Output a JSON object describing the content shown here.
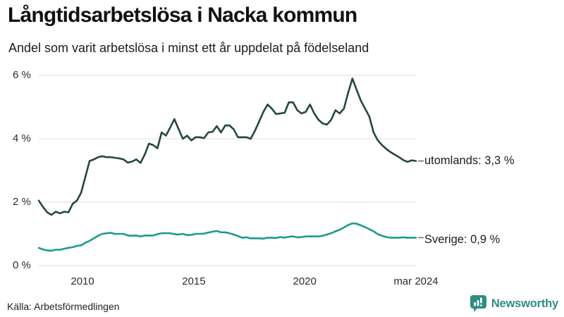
{
  "header": {
    "title": "Långtidsarbetslösa i Nacka kommun",
    "subtitle": "Andel som varit arbetslösa i minst ett år uppdelat på födelseland"
  },
  "source": "Källa: Arbetsförmedlingen",
  "branding": {
    "name": "Newsworthy",
    "logo_icon": "bar-chart-speech-bubble-icon",
    "color": "#2e8c82"
  },
  "colors": {
    "background": "#ffffff",
    "grid": "#e3e3e6",
    "axis_text": "#2b2b2b",
    "connector": "#6b6b6b",
    "utomlands_line": "#24473f",
    "sverige_line": "#1a9c8c"
  },
  "chart_data": {
    "type": "line",
    "title": "Långtidsarbetslösa i Nacka kommun",
    "subtitle": "Andel som varit arbetslösa i minst ett år uppdelat på födelseland",
    "unit": "%",
    "ylim": [
      0,
      6
    ],
    "grid": true,
    "legend_position": "end-of-line-labels",
    "x_range": [
      "2008",
      "mar 2024"
    ],
    "y_ticks": [
      {
        "label": "0 %",
        "value": 0
      },
      {
        "label": "2 %",
        "value": 2
      },
      {
        "label": "4 %",
        "value": 4
      },
      {
        "label": "6 %",
        "value": 6
      }
    ],
    "x_ticks": [
      {
        "label": "2010",
        "pos": 0.116
      },
      {
        "label": "2015",
        "pos": 0.411
      },
      {
        "label": "2020",
        "pos": 0.705
      },
      {
        "label": "mar 2024",
        "pos": 1.0
      }
    ],
    "series": [
      {
        "name": "utomlands",
        "label": "utomlands: 3,3 %",
        "last_value": 3.3,
        "color": "#24473f",
        "values": [
          2.05,
          1.85,
          1.68,
          1.6,
          1.7,
          1.65,
          1.7,
          1.68,
          1.95,
          2.05,
          2.3,
          2.8,
          3.3,
          3.35,
          3.42,
          3.45,
          3.42,
          3.42,
          3.4,
          3.38,
          3.35,
          3.25,
          3.28,
          3.35,
          3.24,
          3.5,
          3.85,
          3.8,
          3.7,
          4.2,
          4.1,
          4.35,
          4.62,
          4.3,
          4.0,
          4.1,
          3.95,
          4.05,
          4.05,
          4.02,
          4.2,
          4.22,
          4.4,
          4.2,
          4.42,
          4.42,
          4.3,
          4.05,
          4.05,
          4.05,
          4.0,
          4.25,
          4.55,
          4.85,
          5.08,
          4.95,
          4.78,
          4.8,
          4.82,
          5.15,
          5.15,
          4.9,
          4.8,
          4.85,
          5.08,
          4.8,
          4.6,
          4.48,
          4.45,
          4.6,
          4.9,
          4.8,
          4.95,
          5.45,
          5.9,
          5.55,
          5.2,
          4.95,
          4.7,
          4.2,
          3.95,
          3.8,
          3.68,
          3.58,
          3.5,
          3.42,
          3.33,
          3.27,
          3.32,
          3.3
        ]
      },
      {
        "name": "Sverige",
        "label": "Sverige: 0,9 %",
        "last_value": 0.9,
        "color": "#1a9c8c",
        "values": [
          0.56,
          0.51,
          0.48,
          0.47,
          0.5,
          0.5,
          0.53,
          0.56,
          0.58,
          0.62,
          0.64,
          0.72,
          0.78,
          0.86,
          0.94,
          1.0,
          1.02,
          1.03,
          1.0,
          1.0,
          1.0,
          0.95,
          0.94,
          0.95,
          0.92,
          0.95,
          0.95,
          0.95,
          0.99,
          1.02,
          1.02,
          1.02,
          0.99,
          0.98,
          1.0,
          0.96,
          0.97,
          1.0,
          1.0,
          1.01,
          1.04,
          1.07,
          1.09,
          1.05,
          1.05,
          1.02,
          0.98,
          0.93,
          0.88,
          0.89,
          0.86,
          0.86,
          0.86,
          0.85,
          0.88,
          0.88,
          0.87,
          0.9,
          0.88,
          0.91,
          0.92,
          0.89,
          0.9,
          0.92,
          0.92,
          0.92,
          0.92,
          0.94,
          0.98,
          1.02,
          1.08,
          1.13,
          1.2,
          1.28,
          1.33,
          1.32,
          1.27,
          1.21,
          1.15,
          1.08,
          0.99,
          0.94,
          0.9,
          0.88,
          0.88,
          0.88,
          0.89,
          0.88,
          0.88,
          0.88
        ]
      }
    ]
  }
}
